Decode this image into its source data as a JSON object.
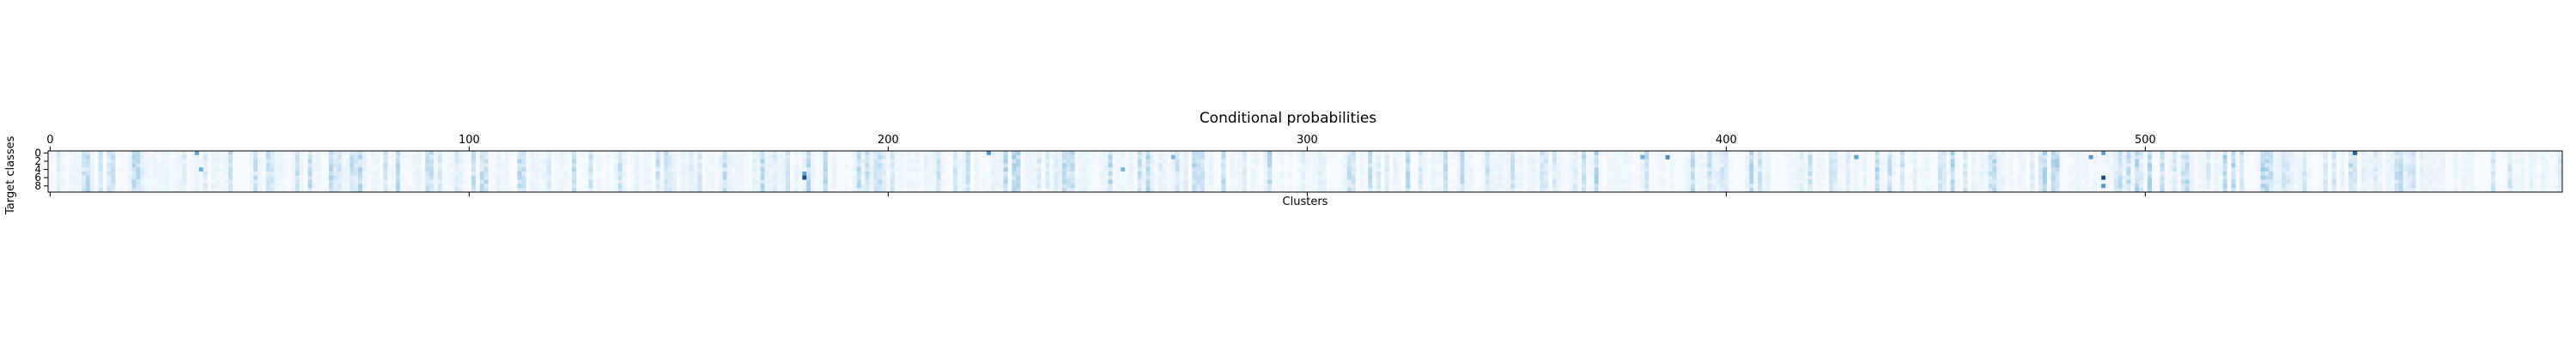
{
  "chart_data": {
    "type": "heatmap",
    "title": "Conditional probabilities",
    "xlabel": "Clusters",
    "ylabel": "Target classes",
    "x_range": [
      0,
      599
    ],
    "y_range": [
      0,
      9
    ],
    "x_ticks": [
      0,
      100,
      200,
      300,
      400,
      500
    ],
    "x_tick_labels": [
      "0",
      "100",
      "200",
      "300",
      "400",
      "500"
    ],
    "y_ticks": [
      0,
      2,
      4,
      6,
      8
    ],
    "y_tick_labels": [
      "0",
      "2",
      "4",
      "6",
      "8"
    ],
    "x_tick_position": "top",
    "colormap": "Blues",
    "color_low": "#f7fbff",
    "color_high": "#08306b",
    "rows": 10,
    "columns": 600,
    "notable_cells": [
      {
        "cluster": 35,
        "class": 0,
        "value": 0.55
      },
      {
        "cluster": 36,
        "class": 4,
        "value": 0.5
      },
      {
        "cluster": 180,
        "class": 6,
        "value": 0.9
      },
      {
        "cluster": 180,
        "class": 5,
        "value": 0.55
      },
      {
        "cluster": 224,
        "class": 0,
        "value": 0.6
      },
      {
        "cluster": 256,
        "class": 4,
        "value": 0.45
      },
      {
        "cluster": 268,
        "class": 1,
        "value": 0.45
      },
      {
        "cluster": 380,
        "class": 1,
        "value": 0.5
      },
      {
        "cluster": 386,
        "class": 1,
        "value": 0.65
      },
      {
        "cluster": 431,
        "class": 1,
        "value": 0.55
      },
      {
        "cluster": 487,
        "class": 1,
        "value": 0.6
      },
      {
        "cluster": 490,
        "class": 0,
        "value": 0.55
      },
      {
        "cluster": 490,
        "class": 6,
        "value": 0.9
      },
      {
        "cluster": 490,
        "class": 8,
        "value": 0.6
      },
      {
        "cluster": 550,
        "class": 0,
        "value": 0.8
      }
    ]
  }
}
